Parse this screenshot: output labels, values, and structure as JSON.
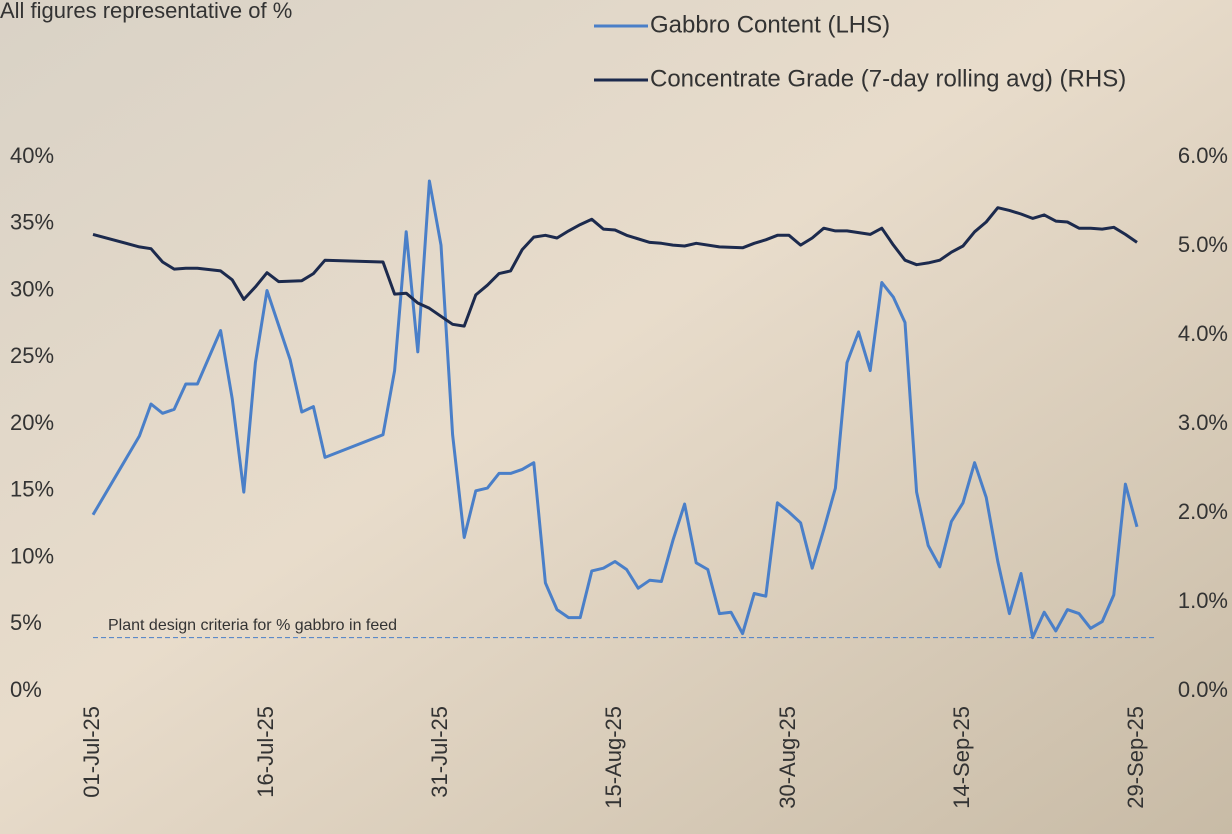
{
  "chart_data": {
    "type": "line",
    "title": "All figures representative of %",
    "xlim": [
      "2025-07-01",
      "2025-09-29"
    ],
    "xticks": [
      {
        "value": "2025-07-01",
        "label": "01-Jul-25"
      },
      {
        "value": "2025-07-16",
        "label": "16-Jul-25"
      },
      {
        "value": "2025-07-31",
        "label": "31-Jul-25"
      },
      {
        "value": "2025-08-15",
        "label": "15-Aug-25"
      },
      {
        "value": "2025-08-30",
        "label": "30-Aug-25"
      },
      {
        "value": "2025-09-14",
        "label": "14-Sep-25"
      },
      {
        "value": "2025-09-29",
        "label": "29-Sep-25"
      }
    ],
    "ylim": [
      0,
      40
    ],
    "yticks": [
      {
        "value": 0,
        "label": "0%"
      },
      {
        "value": 5,
        "label": "5%"
      },
      {
        "value": 10,
        "label": "10%"
      },
      {
        "value": 15,
        "label": "15%"
      },
      {
        "value": 20,
        "label": "20%"
      },
      {
        "value": 25,
        "label": "25%"
      },
      {
        "value": 30,
        "label": "30%"
      },
      {
        "value": 35,
        "label": "35%"
      },
      {
        "value": 40,
        "label": "40%"
      }
    ],
    "y2lim": [
      0,
      6
    ],
    "y2ticks": [
      {
        "value": 0,
        "label": "0.0%"
      },
      {
        "value": 1,
        "label": "1.0%"
      },
      {
        "value": 2,
        "label": "2.0%"
      },
      {
        "value": 3,
        "label": "3.0%"
      },
      {
        "value": 4,
        "label": "4.0%"
      },
      {
        "value": 5,
        "label": "5.0%"
      },
      {
        "value": 6,
        "label": "6.0%"
      }
    ],
    "reference_line": {
      "value": 4,
      "label": "Plant design criteria for % gabbro in feed"
    },
    "series": [
      {
        "name": "Gabbro Content (LHS)",
        "color": "#4a7fc8",
        "x": [
          "2025-07-01",
          "2025-07-05",
          "2025-07-06",
          "2025-07-07",
          "2025-07-08",
          "2025-07-09",
          "2025-07-10",
          "2025-07-12",
          "2025-07-13",
          "2025-07-14",
          "2025-07-15",
          "2025-07-16",
          "2025-07-18",
          "2025-07-19",
          "2025-07-20",
          "2025-07-21",
          "2025-07-26",
          "2025-07-27",
          "2025-07-28",
          "2025-07-29",
          "2025-07-30",
          "2025-07-31",
          "2025-08-01",
          "2025-08-02",
          "2025-08-03",
          "2025-08-04",
          "2025-08-05",
          "2025-08-06",
          "2025-08-07",
          "2025-08-08",
          "2025-08-09",
          "2025-08-10",
          "2025-08-11",
          "2025-08-12",
          "2025-08-13",
          "2025-08-14",
          "2025-08-15",
          "2025-08-16",
          "2025-08-17",
          "2025-08-18",
          "2025-08-19",
          "2025-08-20",
          "2025-08-21",
          "2025-08-22",
          "2025-08-23",
          "2025-08-24",
          "2025-08-25",
          "2025-08-26",
          "2025-08-27",
          "2025-08-28",
          "2025-08-29",
          "2025-08-30",
          "2025-08-31",
          "2025-09-01",
          "2025-09-02",
          "2025-09-03",
          "2025-09-04",
          "2025-09-05",
          "2025-09-06",
          "2025-09-07",
          "2025-09-08",
          "2025-09-09",
          "2025-09-10",
          "2025-09-11",
          "2025-09-12",
          "2025-09-13",
          "2025-09-14",
          "2025-09-15",
          "2025-09-16",
          "2025-09-17",
          "2025-09-18",
          "2025-09-19",
          "2025-09-20",
          "2025-09-21",
          "2025-09-22",
          "2025-09-23",
          "2025-09-24",
          "2025-09-25",
          "2025-09-26",
          "2025-09-27",
          "2025-09-28",
          "2025-09-29"
        ],
        "values": [
          13.2,
          19.1,
          21.5,
          20.8,
          21.1,
          23.0,
          23.0,
          27.0,
          21.9,
          14.9,
          24.6,
          30.0,
          24.8,
          20.9,
          21.3,
          17.5,
          19.2,
          24.0,
          34.4,
          25.4,
          38.2,
          33.4,
          19.2,
          11.5,
          15.0,
          15.2,
          16.3,
          16.3,
          16.6,
          17.1,
          8.1,
          6.1,
          5.5,
          5.5,
          9.0,
          9.2,
          9.7,
          9.1,
          7.7,
          8.3,
          8.2,
          11.3,
          14.0,
          9.6,
          9.1,
          5.8,
          5.9,
          4.3,
          7.3,
          7.1,
          14.1,
          13.4,
          12.6,
          9.2,
          12.1,
          15.2,
          24.6,
          26.9,
          24.0,
          30.6,
          29.5,
          27.6,
          14.9,
          10.9,
          9.3,
          12.7,
          14.1,
          17.1,
          14.5,
          9.7,
          5.8,
          8.8,
          4.0,
          5.9,
          4.5,
          6.1,
          5.8,
          4.7,
          5.2,
          7.2,
          15.5,
          12.3
        ]
      },
      {
        "name": "Concentrate Grade (7-day rolling avg) (RHS)",
        "color": "#1c2a4d",
        "axis": "y2",
        "x": [
          "2025-07-01",
          "2025-07-05",
          "2025-07-06",
          "2025-07-07",
          "2025-07-08",
          "2025-07-09",
          "2025-07-10",
          "2025-07-12",
          "2025-07-13",
          "2025-07-14",
          "2025-07-15",
          "2025-07-16",
          "2025-07-17",
          "2025-07-19",
          "2025-07-20",
          "2025-07-21",
          "2025-07-26",
          "2025-07-27",
          "2025-07-28",
          "2025-07-29",
          "2025-07-30",
          "2025-07-31",
          "2025-08-01",
          "2025-08-02",
          "2025-08-03",
          "2025-08-04",
          "2025-08-05",
          "2025-08-06",
          "2025-08-07",
          "2025-08-08",
          "2025-08-09",
          "2025-08-10",
          "2025-08-11",
          "2025-08-12",
          "2025-08-13",
          "2025-08-14",
          "2025-08-15",
          "2025-08-16",
          "2025-08-18",
          "2025-08-19",
          "2025-08-20",
          "2025-08-21",
          "2025-08-22",
          "2025-08-24",
          "2025-08-26",
          "2025-08-27",
          "2025-08-28",
          "2025-08-29",
          "2025-08-30",
          "2025-08-31",
          "2025-09-01",
          "2025-09-02",
          "2025-09-03",
          "2025-09-04",
          "2025-09-05",
          "2025-09-06",
          "2025-09-07",
          "2025-09-08",
          "2025-09-09",
          "2025-09-10",
          "2025-09-11",
          "2025-09-12",
          "2025-09-13",
          "2025-09-14",
          "2025-09-15",
          "2025-09-16",
          "2025-09-17",
          "2025-09-18",
          "2025-09-19",
          "2025-09-20",
          "2025-09-21",
          "2025-09-22",
          "2025-09-23",
          "2025-09-24",
          "2025-09-25",
          "2025-09-26",
          "2025-09-27",
          "2025-09-28",
          "2025-09-29"
        ],
        "values": [
          5.13,
          4.99,
          4.97,
          4.82,
          4.74,
          4.75,
          4.75,
          4.72,
          4.62,
          4.4,
          4.54,
          4.7,
          4.6,
          4.61,
          4.69,
          4.84,
          4.82,
          4.46,
          4.47,
          4.36,
          4.3,
          4.21,
          4.12,
          4.1,
          4.45,
          4.56,
          4.69,
          4.72,
          4.96,
          5.1,
          5.12,
          5.09,
          5.17,
          5.24,
          5.3,
          5.19,
          5.18,
          5.12,
          5.04,
          5.03,
          5.01,
          5.0,
          5.03,
          4.99,
          4.98,
          5.03,
          5.07,
          5.12,
          5.12,
          5.01,
          5.09,
          5.2,
          5.17,
          5.17,
          5.15,
          5.13,
          5.2,
          5.01,
          4.84,
          4.79,
          4.81,
          4.84,
          4.93,
          5.0,
          5.16,
          5.27,
          5.43,
          5.4,
          5.36,
          5.31,
          5.35,
          5.28,
          5.27,
          5.2,
          5.2,
          5.19,
          5.21,
          5.13,
          5.04
        ]
      }
    ]
  }
}
